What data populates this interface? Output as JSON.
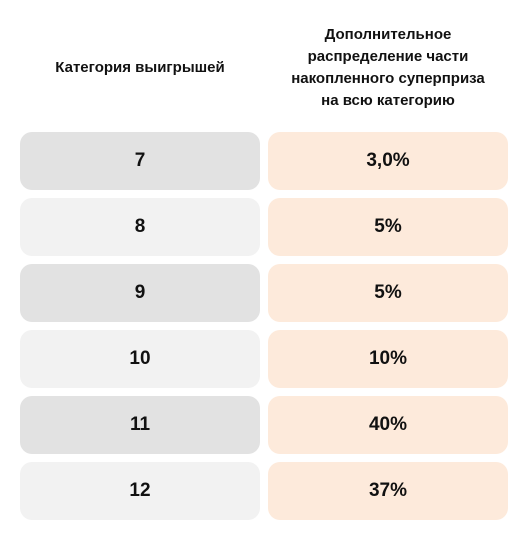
{
  "headers": {
    "category": "Категория выигрышей",
    "distribution_lines": [
      "Дополнительное",
      "распределение части",
      "накопленного суперприза",
      "на всю категорию"
    ]
  },
  "rows": [
    {
      "category": "7",
      "value": "3,0%"
    },
    {
      "category": "8",
      "value": "5%"
    },
    {
      "category": "9",
      "value": "5%"
    },
    {
      "category": "10",
      "value": "10%"
    },
    {
      "category": "11",
      "value": "40%"
    },
    {
      "category": "12",
      "value": "37%"
    }
  ]
}
